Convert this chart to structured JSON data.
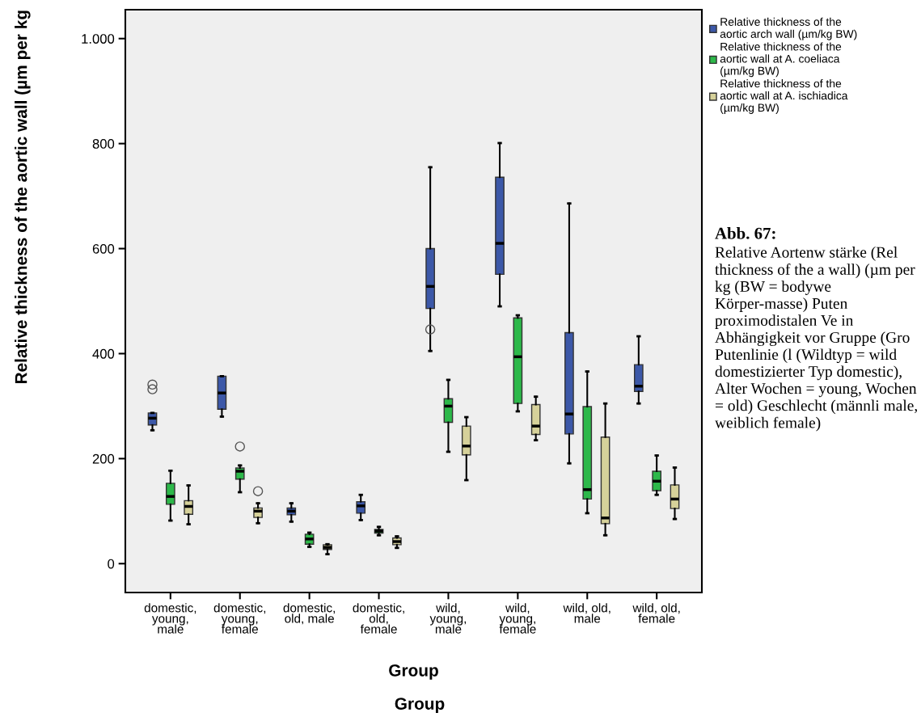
{
  "chart_data": {
    "type": "box",
    "ylabel": "Relative thickness of the aortic wall (µm per kg",
    "xlabel": "Group",
    "categories": [
      "domestic,\nyoung,\nmale",
      "domestic,\nyoung,\nfemale",
      "domestic,\nold, male",
      "domestic,\nold,\nfemale",
      "wild,\nyoung,\nmale",
      "wild,\nyoung,\nfemale",
      "wild, old,\nmale",
      "wild, old,\nfemale"
    ],
    "ylim": [
      -55,
      1055
    ],
    "yticks": [
      0,
      200,
      400,
      600,
      800,
      {
        "value": 1000,
        "label": "1.000"
      }
    ],
    "grid": false,
    "legend": "top right",
    "series": [
      {
        "name": "Relative thickness of the\naortic arch wall (µm/kg BW)",
        "color": "#3c58a8",
        "boxes": [
          {
            "low": 254,
            "q1": 264,
            "median": 277,
            "q3": 287,
            "high": 287,
            "outliers": [
              332,
              341
            ]
          },
          {
            "low": 280,
            "q1": 294,
            "median": 325,
            "q3": 357,
            "high": 357
          },
          {
            "low": 80,
            "q1": 93,
            "median": 100,
            "q3": 106,
            "high": 115
          },
          {
            "low": 83,
            "q1": 96,
            "median": 110,
            "q3": 118,
            "high": 131
          },
          {
            "low": 405,
            "q1": 486,
            "median": 528,
            "q3": 600,
            "high": 755,
            "outliers": [
              446
            ]
          },
          {
            "low": 490,
            "q1": 551,
            "median": 610,
            "q3": 736,
            "high": 801
          },
          {
            "low": 191,
            "q1": 247,
            "median": 285,
            "q3": 440,
            "high": 686
          },
          {
            "low": 305,
            "q1": 328,
            "median": 338,
            "q3": 379,
            "high": 433
          }
        ]
      },
      {
        "name": "Relative thickness of the\naortic wall at A. coeliaca\n(µm/kg BW)",
        "color": "#2db84a",
        "boxes": [
          {
            "low": 82,
            "q1": 113,
            "median": 128,
            "q3": 153,
            "high": 177
          },
          {
            "low": 136,
            "q1": 161,
            "median": 176,
            "q3": 182,
            "high": 187,
            "outliers": [
              223
            ]
          },
          {
            "low": 32,
            "q1": 37,
            "median": 47,
            "q3": 56,
            "high": 59
          },
          {
            "low": 54,
            "q1": 58,
            "median": 62,
            "q3": 65,
            "high": 70
          },
          {
            "low": 213,
            "q1": 269,
            "median": 300,
            "q3": 314,
            "high": 350
          },
          {
            "low": 290,
            "q1": 305,
            "median": 394,
            "q3": 468,
            "high": 473
          },
          {
            "low": 96,
            "q1": 123,
            "median": 141,
            "q3": 299,
            "high": 366
          },
          {
            "low": 131,
            "q1": 139,
            "median": 157,
            "q3": 176,
            "high": 206
          }
        ]
      },
      {
        "name": "Relative thickness of the\naortic wall at A. ischiadica\n(µm/kg BW)",
        "color": "#d6d19a",
        "boxes": [
          {
            "low": 75,
            "q1": 94,
            "median": 109,
            "q3": 120,
            "high": 149
          },
          {
            "low": 77,
            "q1": 88,
            "median": 100,
            "q3": 106,
            "high": 115,
            "outliers": [
              138
            ]
          },
          {
            "low": 18,
            "q1": 27,
            "median": 31,
            "q3": 36,
            "high": 37
          },
          {
            "low": 30,
            "q1": 36,
            "median": 42,
            "q3": 49,
            "high": 52
          },
          {
            "low": 159,
            "q1": 207,
            "median": 224,
            "q3": 262,
            "high": 279
          },
          {
            "low": 235,
            "q1": 246,
            "median": 262,
            "q3": 303,
            "high": 318
          },
          {
            "low": 54,
            "q1": 76,
            "median": 87,
            "q3": 241,
            "high": 305
          },
          {
            "low": 85,
            "q1": 105,
            "median": 123,
            "q3": 150,
            "high": 183
          }
        ]
      }
    ],
    "annotations": [
      "Group",
      "Abb. 67:",
      "Relative Aortenw stärke (Rel thickness of the a wall) (µm per kg (BW = bodywe Körper-masse) Puten proximodistalen Ve in Abhängigkeit vor Gruppe (Gro Putenlinie (l (Wildtyp = wild domestizierter Typ domestic), Alter Wochen = young, Wochen = old) Geschlecht (männli male, weiblich female)"
    ]
  }
}
